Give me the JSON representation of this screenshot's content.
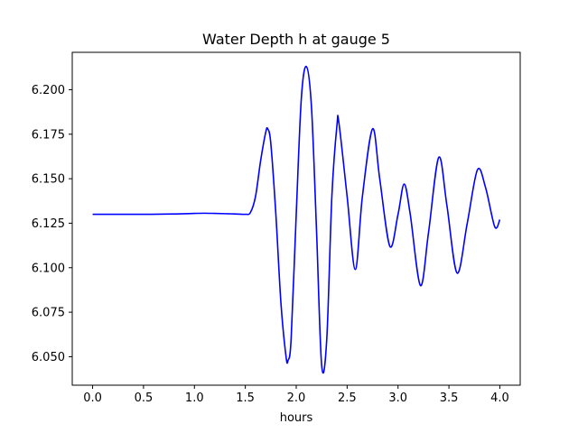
{
  "chart_data": {
    "type": "line",
    "title": "Water Depth h at gauge 5",
    "xlabel": "hours",
    "ylabel": "",
    "xlim": [
      -0.2,
      4.2
    ],
    "ylim": [
      6.034,
      6.221
    ],
    "xticks": [
      0.0,
      0.5,
      1.0,
      1.5,
      2.0,
      2.5,
      3.0,
      3.5,
      4.0
    ],
    "xtick_labels": [
      "0.0",
      "0.5",
      "1.0",
      "1.5",
      "2.0",
      "2.5",
      "3.0",
      "3.5",
      "4.0"
    ],
    "yticks": [
      6.05,
      6.075,
      6.1,
      6.125,
      6.15,
      6.175,
      6.2
    ],
    "ytick_labels": [
      "6.050",
      "6.075",
      "6.100",
      "6.125",
      "6.150",
      "6.175",
      "6.200"
    ],
    "grid": false,
    "series": [
      {
        "color": "#0000ff",
        "x": [
          0.0,
          0.5,
          0.8,
          1.0,
          1.1,
          1.2,
          1.4,
          1.5,
          1.55,
          1.6,
          1.65,
          1.7,
          1.72,
          1.75,
          1.8,
          1.85,
          1.9,
          1.92,
          1.95,
          2.0,
          2.05,
          2.1,
          2.15,
          2.2,
          2.25,
          2.3,
          2.35,
          2.4,
          2.42,
          2.5,
          2.58,
          2.65,
          2.75,
          2.82,
          2.92,
          3.0,
          3.06,
          3.12,
          3.22,
          3.3,
          3.4,
          3.48,
          3.58,
          3.68,
          3.78,
          3.86,
          3.95,
          4.0
        ],
        "y": [
          6.13,
          6.13,
          6.1302,
          6.1305,
          6.1306,
          6.1305,
          6.1302,
          6.13,
          6.131,
          6.14,
          6.16,
          6.176,
          6.178,
          6.17,
          6.13,
          6.08,
          6.05,
          6.048,
          6.06,
          6.13,
          6.195,
          6.213,
          6.19,
          6.12,
          6.045,
          6.06,
          6.14,
          6.18,
          6.181,
          6.14,
          6.099,
          6.14,
          6.178,
          6.15,
          6.112,
          6.13,
          6.147,
          6.13,
          6.09,
          6.12,
          6.162,
          6.135,
          6.097,
          6.125,
          6.155,
          6.145,
          6.123,
          6.127
        ]
      }
    ]
  }
}
